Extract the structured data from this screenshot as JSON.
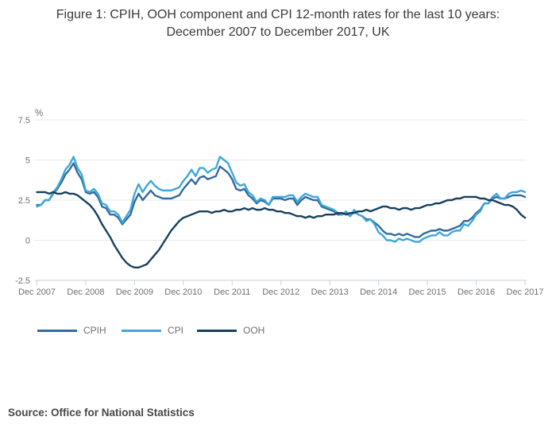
{
  "figure": {
    "title": "Figure 1: CPIH, OOH component and CPI 12-month rates for the last 10 years: December 2007 to December 2017, UK",
    "source": "Source: Office for National Statistics"
  },
  "chart_data": {
    "type": "line",
    "title": "Figure 1: CPIH, OOH component and CPI 12-month rates for the last 10 years: December 2007 to December 2017, UK",
    "xlabel": "",
    "ylabel": "%",
    "ylim": [
      -2.5,
      7.5
    ],
    "yticks": [
      7.5,
      5,
      2.5,
      0,
      -2.5
    ],
    "grid": "horizontal",
    "legend_position": "bottom",
    "x_frequency": "monthly",
    "x_start": "Dec 2007",
    "x_end": "Dec 2017",
    "x_tick_labels": [
      "Dec 2007",
      "Dec 2008",
      "Dec 2009",
      "Dec 2010",
      "Dec 2011",
      "Dec 2012",
      "Dec 2013",
      "Dec 2014",
      "Dec 2015",
      "Dec 2016",
      "Dec 2017"
    ],
    "colors": {
      "grid": "#e8e8e8",
      "axis": "#c3d2de",
      "tick_text": "#707070"
    },
    "series": [
      {
        "name": "CPIH",
        "color": "#336a9d",
        "values": [
          2.2,
          2.2,
          2.5,
          2.5,
          2.9,
          3.2,
          3.6,
          4.1,
          4.4,
          4.8,
          4.2,
          3.8,
          3.0,
          2.9,
          3.0,
          2.7,
          2.1,
          2.0,
          1.6,
          1.6,
          1.4,
          1.0,
          1.3,
          1.6,
          2.4,
          2.9,
          2.5,
          2.8,
          3.1,
          2.8,
          2.7,
          2.6,
          2.6,
          2.6,
          2.7,
          2.8,
          3.2,
          3.5,
          3.8,
          3.5,
          3.9,
          4.0,
          3.8,
          3.9,
          4.0,
          4.6,
          4.4,
          4.2,
          3.8,
          3.2,
          3.1,
          3.2,
          2.8,
          2.6,
          2.3,
          2.5,
          2.4,
          2.2,
          2.6,
          2.6,
          2.6,
          2.5,
          2.6,
          2.6,
          2.2,
          2.5,
          2.7,
          2.6,
          2.5,
          2.5,
          2.1,
          2.0,
          1.9,
          1.8,
          1.6,
          1.6,
          1.7,
          1.5,
          1.8,
          1.6,
          1.5,
          1.3,
          1.3,
          1.1,
          0.9,
          0.6,
          0.4,
          0.4,
          0.3,
          0.4,
          0.3,
          0.4,
          0.3,
          0.2,
          0.2,
          0.4,
          0.5,
          0.6,
          0.6,
          0.7,
          0.6,
          0.6,
          0.7,
          0.8,
          0.9,
          1.2,
          1.2,
          1.4,
          1.7,
          1.9,
          2.3,
          2.3,
          2.6,
          2.7,
          2.6,
          2.6,
          2.7,
          2.8,
          2.8,
          2.8,
          2.7
        ]
      },
      {
        "name": "CPI",
        "color": "#3ea8da",
        "values": [
          2.1,
          2.2,
          2.5,
          2.5,
          3.0,
          3.3,
          3.8,
          4.4,
          4.7,
          5.2,
          4.5,
          4.1,
          3.1,
          3.0,
          3.2,
          2.9,
          2.3,
          2.2,
          1.8,
          1.8,
          1.6,
          1.1,
          1.5,
          1.9,
          2.9,
          3.5,
          3.0,
          3.4,
          3.7,
          3.4,
          3.2,
          3.1,
          3.1,
          3.1,
          3.2,
          3.3,
          3.7,
          4.0,
          4.4,
          4.0,
          4.5,
          4.5,
          4.2,
          4.4,
          4.5,
          5.2,
          5.0,
          4.8,
          4.2,
          3.6,
          3.4,
          3.5,
          3.0,
          2.8,
          2.4,
          2.6,
          2.5,
          2.2,
          2.7,
          2.7,
          2.7,
          2.7,
          2.8,
          2.8,
          2.4,
          2.7,
          2.9,
          2.8,
          2.7,
          2.7,
          2.2,
          2.1,
          2.0,
          1.9,
          1.7,
          1.6,
          1.8,
          1.5,
          1.9,
          1.6,
          1.5,
          1.2,
          1.3,
          1.0,
          0.5,
          0.3,
          0.0,
          0.0,
          -0.1,
          0.1,
          0.0,
          0.1,
          0.0,
          -0.1,
          -0.1,
          0.1,
          0.2,
          0.3,
          0.3,
          0.5,
          0.3,
          0.3,
          0.5,
          0.6,
          0.6,
          1.0,
          0.9,
          1.2,
          1.6,
          1.8,
          2.3,
          2.3,
          2.7,
          2.9,
          2.6,
          2.6,
          2.9,
          3.0,
          3.0,
          3.1,
          3.0
        ]
      },
      {
        "name": "OOH",
        "color": "#17405e",
        "values": [
          3.0,
          3.0,
          3.0,
          2.9,
          3.0,
          2.9,
          2.9,
          3.0,
          2.9,
          2.9,
          2.8,
          2.6,
          2.4,
          2.2,
          1.9,
          1.5,
          1.0,
          0.6,
          0.2,
          -0.3,
          -0.7,
          -1.1,
          -1.4,
          -1.6,
          -1.7,
          -1.7,
          -1.6,
          -1.5,
          -1.2,
          -0.9,
          -0.6,
          -0.2,
          0.2,
          0.6,
          0.9,
          1.2,
          1.4,
          1.5,
          1.6,
          1.7,
          1.8,
          1.8,
          1.8,
          1.7,
          1.8,
          1.8,
          1.9,
          1.8,
          1.8,
          1.9,
          1.9,
          2.0,
          1.9,
          2.0,
          1.9,
          1.9,
          2.0,
          1.9,
          1.9,
          1.8,
          1.8,
          1.7,
          1.7,
          1.6,
          1.5,
          1.5,
          1.4,
          1.5,
          1.4,
          1.5,
          1.5,
          1.6,
          1.6,
          1.6,
          1.7,
          1.7,
          1.6,
          1.7,
          1.7,
          1.8,
          1.8,
          1.9,
          1.8,
          1.9,
          2.0,
          2.1,
          2.1,
          2.0,
          2.0,
          1.9,
          2.0,
          2.0,
          1.9,
          2.0,
          2.0,
          2.1,
          2.2,
          2.2,
          2.3,
          2.3,
          2.4,
          2.5,
          2.5,
          2.6,
          2.6,
          2.7,
          2.7,
          2.7,
          2.7,
          2.6,
          2.6,
          2.5,
          2.5,
          2.4,
          2.3,
          2.2,
          2.2,
          2.1,
          1.9,
          1.6,
          1.4
        ]
      }
    ]
  }
}
